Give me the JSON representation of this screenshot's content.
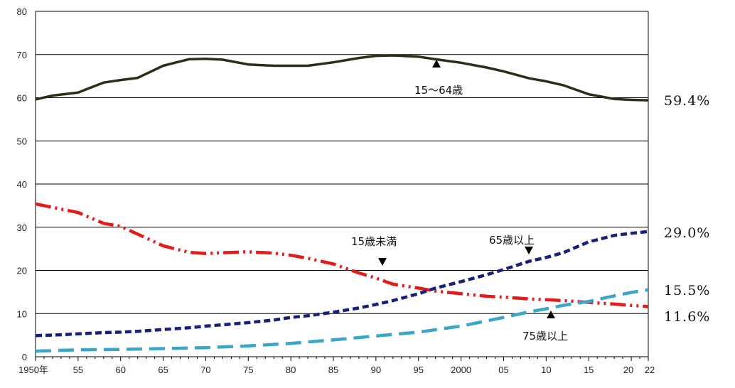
{
  "chart_data": {
    "type": "line",
    "title": "",
    "xlabel": "",
    "ylabel": "",
    "xlim": [
      1950,
      2022
    ],
    "ylim": [
      0,
      80
    ],
    "yticks": [
      "0",
      "10",
      "20",
      "30",
      "40",
      "50",
      "60",
      "70",
      "80"
    ],
    "xticks": [
      {
        "x": 1950,
        "label": "1950年"
      },
      {
        "x": 1955,
        "label": "55"
      },
      {
        "x": 1960,
        "label": "60"
      },
      {
        "x": 1965,
        "label": "65"
      },
      {
        "x": 1970,
        "label": "70"
      },
      {
        "x": 1975,
        "label": "75"
      },
      {
        "x": 1980,
        "label": "80"
      },
      {
        "x": 1985,
        "label": "85"
      },
      {
        "x": 1990,
        "label": "90"
      },
      {
        "x": 1995,
        "label": "95"
      },
      {
        "x": 2000,
        "label": "2000"
      },
      {
        "x": 2005,
        "label": "05"
      },
      {
        "x": 2010,
        "label": "10"
      },
      {
        "x": 2015,
        "label": "15"
      },
      {
        "x": 2020,
        "label": "20"
      },
      {
        "x": 2022,
        "label": "22"
      }
    ],
    "grid": "horizontal",
    "series": [
      {
        "name": "15～64歳",
        "color": "#2b2f14",
        "style": "solid",
        "end_label": "59.4%",
        "points": [
          [
            1950,
            59.6
          ],
          [
            1952,
            60.5
          ],
          [
            1955,
            61.2
          ],
          [
            1958,
            63.5
          ],
          [
            1960,
            64.1
          ],
          [
            1962,
            64.6
          ],
          [
            1965,
            67.4
          ],
          [
            1968,
            68.9
          ],
          [
            1970,
            69.0
          ],
          [
            1972,
            68.8
          ],
          [
            1975,
            67.7
          ],
          [
            1978,
            67.4
          ],
          [
            1980,
            67.4
          ],
          [
            1982,
            67.4
          ],
          [
            1985,
            68.2
          ],
          [
            1988,
            69.2
          ],
          [
            1990,
            69.7
          ],
          [
            1992,
            69.8
          ],
          [
            1995,
            69.5
          ],
          [
            1997,
            68.9
          ],
          [
            2000,
            68.1
          ],
          [
            2003,
            67.0
          ],
          [
            2005,
            66.1
          ],
          [
            2008,
            64.5
          ],
          [
            2010,
            63.8
          ],
          [
            2012,
            62.9
          ],
          [
            2015,
            60.8
          ],
          [
            2018,
            59.7
          ],
          [
            2020,
            59.5
          ],
          [
            2022,
            59.4
          ]
        ]
      },
      {
        "name": "15歳未満",
        "color": "#e41b1b",
        "style": "dashdotdot",
        "end_label": "11.6%",
        "points": [
          [
            1950,
            35.4
          ],
          [
            1952,
            34.6
          ],
          [
            1955,
            33.4
          ],
          [
            1958,
            30.9
          ],
          [
            1960,
            30.2
          ],
          [
            1962,
            28.4
          ],
          [
            1965,
            25.7
          ],
          [
            1968,
            24.2
          ],
          [
            1970,
            23.9
          ],
          [
            1972,
            24.1
          ],
          [
            1975,
            24.3
          ],
          [
            1978,
            24.0
          ],
          [
            1980,
            23.5
          ],
          [
            1982,
            22.8
          ],
          [
            1985,
            21.5
          ],
          [
            1988,
            19.4
          ],
          [
            1990,
            18.2
          ],
          [
            1992,
            16.8
          ],
          [
            1995,
            15.9
          ],
          [
            1997,
            15.2
          ],
          [
            2000,
            14.6
          ],
          [
            2003,
            14.0
          ],
          [
            2005,
            13.8
          ],
          [
            2008,
            13.4
          ],
          [
            2010,
            13.2
          ],
          [
            2012,
            13.0
          ],
          [
            2015,
            12.6
          ],
          [
            2018,
            12.2
          ],
          [
            2020,
            11.9
          ],
          [
            2022,
            11.6
          ]
        ]
      },
      {
        "name": "65歳以上",
        "color": "#1a1f7a",
        "style": "short-dash",
        "end_label": "29.0%",
        "points": [
          [
            1950,
            4.9
          ],
          [
            1952,
            5.0
          ],
          [
            1955,
            5.3
          ],
          [
            1958,
            5.6
          ],
          [
            1960,
            5.7
          ],
          [
            1962,
            5.9
          ],
          [
            1965,
            6.3
          ],
          [
            1968,
            6.7
          ],
          [
            1970,
            7.1
          ],
          [
            1972,
            7.4
          ],
          [
            1975,
            7.9
          ],
          [
            1978,
            8.5
          ],
          [
            1980,
            9.1
          ],
          [
            1982,
            9.5
          ],
          [
            1985,
            10.3
          ],
          [
            1988,
            11.3
          ],
          [
            1990,
            12.1
          ],
          [
            1992,
            13.0
          ],
          [
            1995,
            14.6
          ],
          [
            1997,
            15.9
          ],
          [
            2000,
            17.4
          ],
          [
            2003,
            19.0
          ],
          [
            2005,
            20.2
          ],
          [
            2008,
            22.1
          ],
          [
            2010,
            23.0
          ],
          [
            2012,
            24.1
          ],
          [
            2015,
            26.6
          ],
          [
            2018,
            28.1
          ],
          [
            2020,
            28.6
          ],
          [
            2022,
            29.0
          ]
        ]
      },
      {
        "name": "75歳以上",
        "color": "#3aa6c9",
        "style": "long-dash",
        "end_label": "15.5%",
        "points": [
          [
            1950,
            1.3
          ],
          [
            1955,
            1.6
          ],
          [
            1960,
            1.7
          ],
          [
            1965,
            1.9
          ],
          [
            1970,
            2.1
          ],
          [
            1975,
            2.5
          ],
          [
            1980,
            3.1
          ],
          [
            1985,
            3.9
          ],
          [
            1990,
            4.8
          ],
          [
            1995,
            5.7
          ],
          [
            2000,
            7.1
          ],
          [
            2005,
            9.1
          ],
          [
            2008,
            10.4
          ],
          [
            2010,
            11.1
          ],
          [
            2012,
            11.9
          ],
          [
            2015,
            12.8
          ],
          [
            2018,
            14.1
          ],
          [
            2020,
            14.9
          ],
          [
            2022,
            15.5
          ]
        ]
      }
    ]
  }
}
